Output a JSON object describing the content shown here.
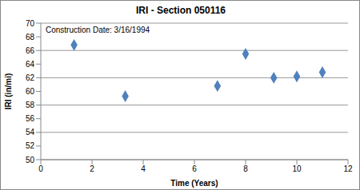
{
  "chart_data": {
    "type": "scatter",
    "title": "IRI - Section 050116",
    "annotation": "Construction Date: 3/16/1994",
    "x_label": "Time (Years)",
    "y_label": "IRI (in/mi)",
    "x": [
      1.3,
      3.3,
      6.9,
      8.0,
      9.1,
      10.0,
      11.0
    ],
    "values": [
      66.8,
      59.3,
      60.8,
      65.5,
      62.0,
      62.2,
      62.8
    ],
    "color": "#4f81bd",
    "marker": "diamond",
    "xlim": [
      0,
      12
    ],
    "xticks": [
      0,
      2,
      4,
      6,
      8,
      10,
      12
    ],
    "ylim": [
      50,
      70
    ],
    "yticks": [
      50,
      52,
      54,
      56,
      58,
      60,
      62,
      64,
      66,
      68,
      70
    ],
    "grid": true
  }
}
